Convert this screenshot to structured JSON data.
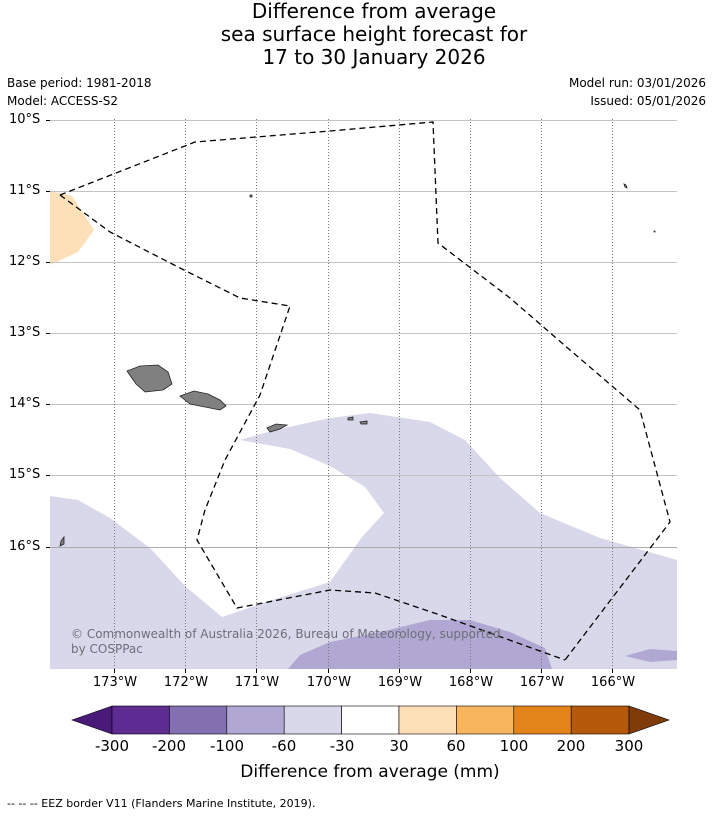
{
  "title": {
    "line1": "Difference from average",
    "line2": "sea surface height forecast for",
    "line3": "17 to 30 January 2026"
  },
  "meta": {
    "base_period": "Base period: 1981-2018",
    "model": "Model: ACCESS-S2",
    "model_run": "Model run: 03/01/2026",
    "issued": "Issued: 05/01/2026"
  },
  "map": {
    "lat_labels": [
      "10°S",
      "11°S",
      "12°S",
      "13°S",
      "14°S",
      "15°S",
      "16°S"
    ],
    "lon_labels": [
      "173°W",
      "172°W",
      "171°W",
      "170°W",
      "169°W",
      "168°W",
      "167°W",
      "166°W"
    ],
    "copyright": "© Commonwealth of Australia 2026, Bureau of Meteorology, supported by COSPPac"
  },
  "colorbar": {
    "title": "Difference from average (mm)",
    "ticks": [
      "-300",
      "-200",
      "-100",
      "-60",
      "-30",
      "30",
      "60",
      "100",
      "200",
      "300"
    ],
    "colors": [
      "#4a1a78",
      "#5e2b92",
      "#8270b0",
      "#b0a8d2",
      "#d8d8ea",
      "#ffffff",
      "#fde0b8",
      "#f9b55e",
      "#e3841a",
      "#b45a0a",
      "#7f3b08"
    ]
  },
  "legend": {
    "eez": "--  --  -- EEZ border V11 (Flanders Marine Institute, 2019)."
  }
}
